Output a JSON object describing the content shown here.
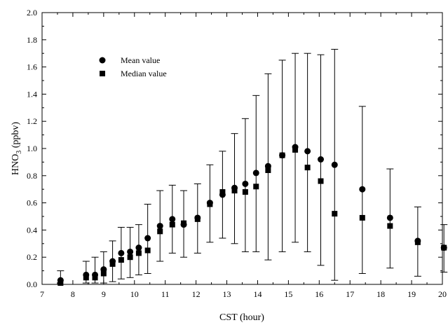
{
  "chart_data": {
    "type": "scatter",
    "title": "",
    "xlabel": "CST (hour)",
    "ylabel": {
      "base": "HNO",
      "sub": "3",
      "rest": " (ppbv)"
    },
    "xlim": [
      7,
      20
    ],
    "ylim": [
      0,
      2.0
    ],
    "xticks": [
      7,
      8,
      9,
      10,
      11,
      12,
      13,
      14,
      15,
      16,
      17,
      18,
      19,
      20
    ],
    "yticks": [
      0.0,
      0.2,
      0.4,
      0.6,
      0.8,
      1.0,
      1.2,
      1.4,
      1.6,
      1.8,
      2.0
    ],
    "ytick_labels": [
      "0.0",
      "0.2",
      "0.4",
      "0.6",
      "0.8",
      "1.0",
      "1.2",
      "1.4",
      "1.6",
      "1.8",
      "2.0"
    ],
    "legend_position": "top-left",
    "legend": [
      {
        "label": "Mean value",
        "marker": "circle"
      },
      {
        "label": "Median value",
        "marker": "square"
      }
    ],
    "points": [
      {
        "x": 7.6,
        "mean": 0.03,
        "median": 0.01,
        "upper": 0.1,
        "lower": 0.0
      },
      {
        "x": 8.43,
        "mean": 0.07,
        "median": 0.05,
        "upper": 0.17,
        "lower": 0.01
      },
      {
        "x": 8.72,
        "mean": 0.07,
        "median": 0.05,
        "upper": 0.2,
        "lower": 0.01
      },
      {
        "x": 9.0,
        "mean": 0.11,
        "median": 0.08,
        "upper": 0.24,
        "lower": 0.01
      },
      {
        "x": 9.29,
        "mean": 0.17,
        "median": 0.15,
        "upper": 0.32,
        "lower": 0.02
      },
      {
        "x": 9.57,
        "mean": 0.23,
        "median": 0.18,
        "upper": 0.42,
        "lower": 0.04
      },
      {
        "x": 9.86,
        "mean": 0.24,
        "median": 0.2,
        "upper": 0.42,
        "lower": 0.05
      },
      {
        "x": 10.14,
        "mean": 0.27,
        "median": 0.23,
        "upper": 0.44,
        "lower": 0.07
      },
      {
        "x": 10.43,
        "mean": 0.34,
        "median": 0.25,
        "upper": 0.59,
        "lower": 0.08
      },
      {
        "x": 10.83,
        "mean": 0.43,
        "median": 0.39,
        "upper": 0.69,
        "lower": 0.17
      },
      {
        "x": 11.23,
        "mean": 0.48,
        "median": 0.44,
        "upper": 0.73,
        "lower": 0.23
      },
      {
        "x": 11.6,
        "mean": 0.44,
        "median": 0.45,
        "upper": 0.69,
        "lower": 0.2
      },
      {
        "x": 12.05,
        "mean": 0.49,
        "median": 0.48,
        "upper": 0.74,
        "lower": 0.23
      },
      {
        "x": 12.45,
        "mean": 0.6,
        "median": 0.59,
        "upper": 0.88,
        "lower": 0.31
      },
      {
        "x": 12.86,
        "mean": 0.66,
        "median": 0.68,
        "upper": 0.98,
        "lower": 0.34
      },
      {
        "x": 13.25,
        "mean": 0.71,
        "median": 0.69,
        "upper": 1.11,
        "lower": 0.3
      },
      {
        "x": 13.6,
        "mean": 0.74,
        "median": 0.68,
        "upper": 1.22,
        "lower": 0.24
      },
      {
        "x": 13.95,
        "mean": 0.82,
        "median": 0.72,
        "upper": 1.39,
        "lower": 0.24
      },
      {
        "x": 14.34,
        "mean": 0.87,
        "median": 0.84,
        "upper": 1.55,
        "lower": 0.18
      },
      {
        "x": 14.8,
        "mean": 0.95,
        "median": 0.95,
        "upper": 1.65,
        "lower": 0.24
      },
      {
        "x": 15.22,
        "mean": 1.01,
        "median": 0.99,
        "upper": 1.7,
        "lower": 0.31
      },
      {
        "x": 15.62,
        "mean": 0.98,
        "median": 0.86,
        "upper": 1.7,
        "lower": 0.24
      },
      {
        "x": 16.05,
        "mean": 0.92,
        "median": 0.76,
        "upper": 1.69,
        "lower": 0.14
      },
      {
        "x": 16.5,
        "mean": 0.88,
        "median": 0.52,
        "upper": 1.73,
        "lower": 0.03
      },
      {
        "x": 17.4,
        "mean": 0.7,
        "median": 0.49,
        "upper": 1.31,
        "lower": 0.08
      },
      {
        "x": 18.3,
        "mean": 0.49,
        "median": 0.43,
        "upper": 0.85,
        "lower": 0.12
      },
      {
        "x": 19.2,
        "mean": 0.32,
        "median": 0.31,
        "upper": 0.57,
        "lower": 0.06
      },
      {
        "x": 20.05,
        "mean": 0.27,
        "median": 0.27,
        "upper": 0.44,
        "lower": 0.09
      }
    ]
  }
}
